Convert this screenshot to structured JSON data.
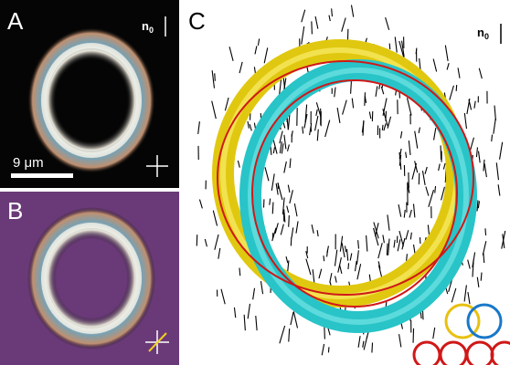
{
  "panels": [
    {
      "label": "A",
      "axis_label": {
        "base": "n",
        "sub": "0"
      },
      "scale_bar": "9 μm"
    },
    {
      "label": "B"
    },
    {
      "label": "C",
      "axis_label": {
        "base": "n",
        "sub": "0"
      }
    }
  ]
}
